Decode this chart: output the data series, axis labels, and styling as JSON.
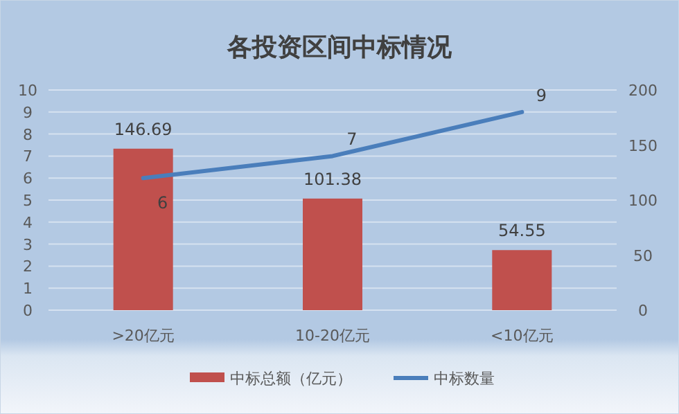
{
  "chart_data": {
    "type": "bar",
    "title": "各投资区间中标情况",
    "categories": [
      ">20亿元",
      "10-20亿元",
      "<10亿元"
    ],
    "series": [
      {
        "name": "中标总额（亿元）",
        "axis": "y2",
        "color": "#c0504d",
        "values": [
          146.69,
          101.38,
          54.55
        ]
      },
      {
        "name": "中标数量",
        "type": "line",
        "axis": "y",
        "color": "#4a7ebb",
        "values": [
          6,
          7,
          9
        ]
      }
    ],
    "ylim": [
      0,
      10
    ],
    "yticks": [
      0,
      1,
      2,
      3,
      4,
      5,
      6,
      7,
      8,
      9,
      10
    ],
    "y2lim": [
      0,
      200
    ],
    "y2ticks": [
      0,
      50,
      100,
      150,
      200
    ],
    "grid": "y",
    "legend": "bottom",
    "data_labels": true,
    "marker": "none",
    "line_style": "solid"
  }
}
